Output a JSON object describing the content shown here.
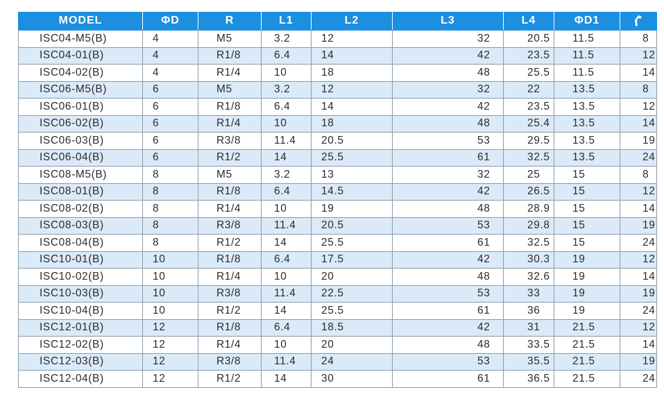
{
  "table": {
    "headers": {
      "model": "MODEL",
      "d": "ΦD",
      "r": "R",
      "l1": "L1",
      "l2": "L2",
      "l3": "L3",
      "l4": "L4",
      "d1": "ΦD1",
      "wrench_icon": "wrench-icon"
    },
    "colors": {
      "header_bg": "#1b8fe0",
      "header_text": "#ffffff",
      "alt_row_bg": "#dbeaf8",
      "border": "#8a9aa8"
    },
    "rows": [
      {
        "model": "ISC04-M5(B)",
        "d": "4",
        "r": "M5",
        "l1": "3.2",
        "l2": "12",
        "l3": "32",
        "l4": "20.5",
        "d1": "11.5",
        "w": "8"
      },
      {
        "model": "ISC04-01(B)",
        "d": "4",
        "r": "R1/8",
        "l1": "6.4",
        "l2": "14",
        "l3": "42",
        "l4": "23.5",
        "d1": "11.5",
        "w": "12"
      },
      {
        "model": "ISC04-02(B)",
        "d": "4",
        "r": "R1/4",
        "l1": "10",
        "l2": "18",
        "l3": "48",
        "l4": "25.5",
        "d1": "11.5",
        "w": "14"
      },
      {
        "model": "ISC06-M5(B)",
        "d": "6",
        "r": "M5",
        "l1": "3.2",
        "l2": "12",
        "l3": "32",
        "l4": "22",
        "d1": "13.5",
        "w": "8"
      },
      {
        "model": "ISC06-01(B)",
        "d": "6",
        "r": "R1/8",
        "l1": "6.4",
        "l2": "14",
        "l3": "42",
        "l4": "23.5",
        "d1": "13.5",
        "w": "12"
      },
      {
        "model": "ISC06-02(B)",
        "d": "6",
        "r": "R1/4",
        "l1": "10",
        "l2": "18",
        "l3": "48",
        "l4": "25.4",
        "d1": "13.5",
        "w": "14"
      },
      {
        "model": "ISC06-03(B)",
        "d": "6",
        "r": "R3/8",
        "l1": "11.4",
        "l2": "20.5",
        "l3": "53",
        "l4": "29.5",
        "d1": "13.5",
        "w": "19"
      },
      {
        "model": "ISC06-04(B)",
        "d": "6",
        "r": "R1/2",
        "l1": "14",
        "l2": "25.5",
        "l3": "61",
        "l4": "32.5",
        "d1": "13.5",
        "w": "24"
      },
      {
        "model": "ISC08-M5(B)",
        "d": "8",
        "r": "M5",
        "l1": "3.2",
        "l2": "13",
        "l3": "32",
        "l4": "25",
        "d1": "15",
        "w": "8"
      },
      {
        "model": "ISC08-01(B)",
        "d": "8",
        "r": "R1/8",
        "l1": "6.4",
        "l2": "14.5",
        "l3": "42",
        "l4": "26.5",
        "d1": "15",
        "w": "12"
      },
      {
        "model": "ISC08-02(B)",
        "d": "8",
        "r": "R1/4",
        "l1": "10",
        "l2": "19",
        "l3": "48",
        "l4": "28.9",
        "d1": "15",
        "w": "14"
      },
      {
        "model": "ISC08-03(B)",
        "d": "8",
        "r": "R3/8",
        "l1": "11.4",
        "l2": "20.5",
        "l3": "53",
        "l4": "29.8",
        "d1": "15",
        "w": "19"
      },
      {
        "model": "ISC08-04(B)",
        "d": "8",
        "r": "R1/2",
        "l1": "14",
        "l2": "25.5",
        "l3": "61",
        "l4": "32.5",
        "d1": "15",
        "w": "24"
      },
      {
        "model": "ISC10-01(B)",
        "d": "10",
        "r": "R1/8",
        "l1": "6.4",
        "l2": "17.5",
        "l3": "42",
        "l4": "30.3",
        "d1": "19",
        "w": "12"
      },
      {
        "model": "ISC10-02(B)",
        "d": "10",
        "r": "R1/4",
        "l1": "10",
        "l2": "20",
        "l3": "48",
        "l4": "32.6",
        "d1": "19",
        "w": "14"
      },
      {
        "model": "ISC10-03(B)",
        "d": "10",
        "r": "R3/8",
        "l1": "11.4",
        "l2": "22.5",
        "l3": "53",
        "l4": "33",
        "d1": "19",
        "w": "19"
      },
      {
        "model": "ISC10-04(B)",
        "d": "10",
        "r": "R1/2",
        "l1": "14",
        "l2": "25.5",
        "l3": "61",
        "l4": "36",
        "d1": "19",
        "w": "24"
      },
      {
        "model": "ISC12-01(B)",
        "d": "12",
        "r": "R1/8",
        "l1": "6.4",
        "l2": "18.5",
        "l3": "42",
        "l4": "31",
        "d1": "21.5",
        "w": "12"
      },
      {
        "model": "ISC12-02(B)",
        "d": "12",
        "r": "R1/4",
        "l1": "10",
        "l2": "20",
        "l3": "48",
        "l4": "33.5",
        "d1": "21.5",
        "w": "14"
      },
      {
        "model": "ISC12-03(B)",
        "d": "12",
        "r": "R3/8",
        "l1": "11.4",
        "l2": "24",
        "l3": "53",
        "l4": "35.5",
        "d1": "21.5",
        "w": "19"
      },
      {
        "model": "ISC12-04(B)",
        "d": "12",
        "r": "R1/2",
        "l1": "14",
        "l2": "30",
        "l3": "61",
        "l4": "36.5",
        "d1": "21.5",
        "w": "24"
      }
    ]
  }
}
